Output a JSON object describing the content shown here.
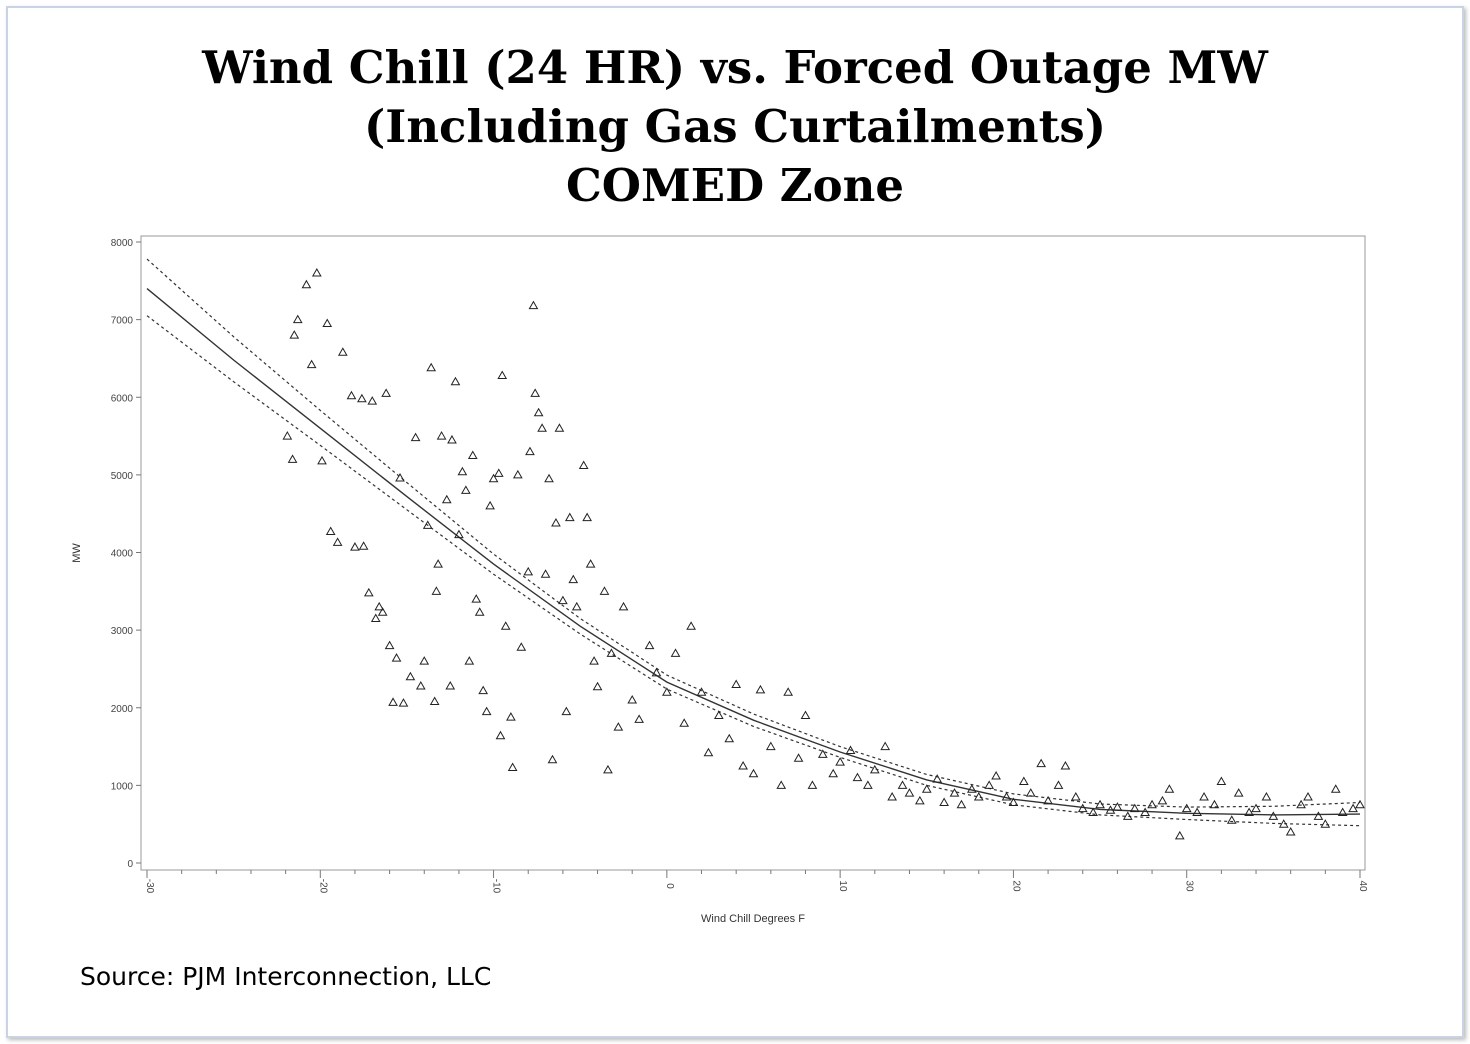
{
  "chart_data": {
    "type": "scatter",
    "title": [
      "Wind Chill (24 HR) vs. Forced Outage MW",
      "(Including Gas Curtailments)",
      "COMED Zone"
    ],
    "xlabel": "Wind Chill Degrees F",
    "ylabel": "MW",
    "xlim": [
      -30,
      40
    ],
    "ylim": [
      0,
      8000
    ],
    "xticks": [
      "-30",
      "-20",
      "-10",
      "0",
      "10",
      "20",
      "30",
      "40"
    ],
    "yticks": [
      "0",
      "1000",
      "2000",
      "3000",
      "4000",
      "5000",
      "6000",
      "7000",
      "8000"
    ],
    "marker": "triangle",
    "points": [
      [
        -21.9,
        5500
      ],
      [
        -21.6,
        5200
      ],
      [
        -21.5,
        6800
      ],
      [
        -21.3,
        7000
      ],
      [
        -20.8,
        7450
      ],
      [
        -20.5,
        6420
      ],
      [
        -20.2,
        7600
      ],
      [
        -19.9,
        5180
      ],
      [
        -19.6,
        6950
      ],
      [
        -19.4,
        4270
      ],
      [
        -19,
        4130
      ],
      [
        -18.7,
        6580
      ],
      [
        -18.2,
        6020
      ],
      [
        -18,
        4070
      ],
      [
        -17.6,
        5980
      ],
      [
        -17.5,
        4080
      ],
      [
        -17.2,
        3480
      ],
      [
        -17,
        5950
      ],
      [
        -16.8,
        3150
      ],
      [
        -16.6,
        3300
      ],
      [
        -16.4,
        3230
      ],
      [
        -16.2,
        6050
      ],
      [
        -16,
        2800
      ],
      [
        -15.8,
        2070
      ],
      [
        -15.6,
        2640
      ],
      [
        -15.4,
        4960
      ],
      [
        -15.2,
        2060
      ],
      [
        -14.8,
        2400
      ],
      [
        -14.5,
        5480
      ],
      [
        -14.2,
        2280
      ],
      [
        -14,
        2600
      ],
      [
        -13.8,
        4350
      ],
      [
        -13.6,
        6380
      ],
      [
        -13.4,
        2080
      ],
      [
        -13.3,
        3500
      ],
      [
        -13.2,
        3850
      ],
      [
        -13,
        5500
      ],
      [
        -12.7,
        4680
      ],
      [
        -12.5,
        2280
      ],
      [
        -12.4,
        5450
      ],
      [
        -12.2,
        6200
      ],
      [
        -12,
        4230
      ],
      [
        -11.8,
        5040
      ],
      [
        -11.6,
        4800
      ],
      [
        -11.4,
        2600
      ],
      [
        -11.2,
        5250
      ],
      [
        -11,
        3400
      ],
      [
        -10.8,
        3230
      ],
      [
        -10.6,
        2220
      ],
      [
        -10.4,
        1950
      ],
      [
        -10.2,
        4600
      ],
      [
        -10,
        4950
      ],
      [
        -9.7,
        5020
      ],
      [
        -9.6,
        1640
      ],
      [
        -9.5,
        6280
      ],
      [
        -9.3,
        3050
      ],
      [
        -9,
        1880
      ],
      [
        -8.9,
        1230
      ],
      [
        -8.6,
        5000
      ],
      [
        -8.4,
        2780
      ],
      [
        -8,
        3750
      ],
      [
        -7.9,
        5300
      ],
      [
        -7.7,
        7180
      ],
      [
        -7.6,
        6050
      ],
      [
        -7.4,
        5800
      ],
      [
        -7.2,
        5600
      ],
      [
        -7,
        3720
      ],
      [
        -6.8,
        4950
      ],
      [
        -6.6,
        1330
      ],
      [
        -6.4,
        4380
      ],
      [
        -6.2,
        5600
      ],
      [
        -6,
        3380
      ],
      [
        -5.8,
        1950
      ],
      [
        -5.6,
        4450
      ],
      [
        -5.4,
        3650
      ],
      [
        -5.2,
        3300
      ],
      [
        -4.8,
        5120
      ],
      [
        -4.6,
        4450
      ],
      [
        -4.4,
        3850
      ],
      [
        -4.2,
        2600
      ],
      [
        -4,
        2270
      ],
      [
        -3.6,
        3500
      ],
      [
        -3.4,
        1200
      ],
      [
        -3.2,
        2700
      ],
      [
        -2.8,
        1750
      ],
      [
        -2.5,
        3300
      ],
      [
        -2,
        2100
      ],
      [
        -1.6,
        1850
      ],
      [
        -1,
        2800
      ],
      [
        -0.6,
        2450
      ],
      [
        0,
        2200
      ],
      [
        0.5,
        2700
      ],
      [
        1,
        1800
      ],
      [
        1.4,
        3050
      ],
      [
        2,
        2200
      ],
      [
        2.4,
        1420
      ],
      [
        3,
        1900
      ],
      [
        3.6,
        1600
      ],
      [
        4,
        2300
      ],
      [
        4.4,
        1250
      ],
      [
        5,
        1150
      ],
      [
        5.4,
        2230
      ],
      [
        6,
        1500
      ],
      [
        6.6,
        1000
      ],
      [
        7,
        2200
      ],
      [
        7.6,
        1350
      ],
      [
        8,
        1900
      ],
      [
        8.4,
        1000
      ],
      [
        9,
        1400
      ],
      [
        9.6,
        1150
      ],
      [
        10,
        1300
      ],
      [
        10.6,
        1450
      ],
      [
        11,
        1100
      ],
      [
        11.6,
        1000
      ],
      [
        12,
        1200
      ],
      [
        12.6,
        1500
      ],
      [
        13,
        850
      ],
      [
        13.6,
        1000
      ],
      [
        14,
        900
      ],
      [
        14.6,
        800
      ],
      [
        15,
        950
      ],
      [
        15.6,
        1080
      ],
      [
        16,
        780
      ],
      [
        16.6,
        900
      ],
      [
        17,
        750
      ],
      [
        17.6,
        950
      ],
      [
        18,
        850
      ],
      [
        18.6,
        1000
      ],
      [
        19,
        1120
      ],
      [
        19.6,
        850
      ],
      [
        20,
        780
      ],
      [
        20.6,
        1050
      ],
      [
        21,
        900
      ],
      [
        21.6,
        1280
      ],
      [
        22,
        800
      ],
      [
        22.6,
        1000
      ],
      [
        23,
        1250
      ],
      [
        23.6,
        850
      ],
      [
        24,
        700
      ],
      [
        24.6,
        650
      ],
      [
        25,
        750
      ],
      [
        25.6,
        680
      ],
      [
        26,
        720
      ],
      [
        26.6,
        600
      ],
      [
        27,
        700
      ],
      [
        27.6,
        650
      ],
      [
        28,
        750
      ],
      [
        28.6,
        800
      ],
      [
        29,
        950
      ],
      [
        29.6,
        350
      ],
      [
        30,
        700
      ],
      [
        30.6,
        650
      ],
      [
        31,
        850
      ],
      [
        31.6,
        750
      ],
      [
        32,
        1050
      ],
      [
        32.6,
        550
      ],
      [
        33,
        900
      ],
      [
        33.6,
        650
      ],
      [
        34,
        700
      ],
      [
        34.6,
        850
      ],
      [
        35,
        600
      ],
      [
        35.6,
        500
      ],
      [
        36,
        400
      ],
      [
        36.6,
        750
      ],
      [
        37,
        850
      ],
      [
        37.6,
        600
      ],
      [
        38,
        500
      ],
      [
        38.6,
        950
      ],
      [
        39,
        650
      ],
      [
        39.6,
        700
      ],
      [
        40,
        750
      ]
    ],
    "fit": {
      "x": [
        -30,
        -25,
        -20,
        -15,
        -10,
        -5,
        0,
        5,
        10,
        15,
        20,
        25,
        30,
        35,
        40
      ],
      "y": [
        7400,
        6480,
        5600,
        4720,
        3850,
        3050,
        2330,
        1840,
        1430,
        1070,
        820,
        690,
        640,
        620,
        630
      ],
      "upper": [
        7780,
        6780,
        5830,
        4900,
        3980,
        3150,
        2420,
        1920,
        1500,
        1140,
        890,
        760,
        720,
        730,
        780
      ],
      "lower": [
        7050,
        6200,
        5380,
        4550,
        3720,
        2950,
        2240,
        1760,
        1360,
        1000,
        750,
        620,
        560,
        510,
        480
      ]
    },
    "grid": false,
    "legend": "none"
  },
  "source": "Source: PJM Interconnection, LLC"
}
